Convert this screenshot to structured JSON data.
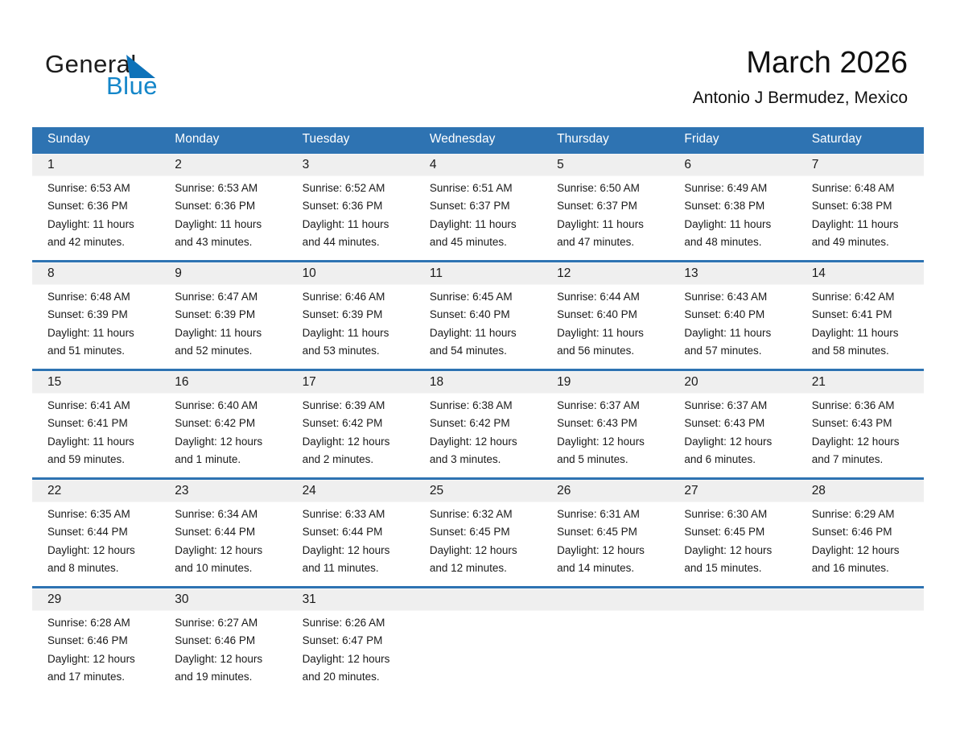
{
  "logo": {
    "general": "General",
    "blue": "Blue"
  },
  "header": {
    "title": "March 2026",
    "subtitle": "Antonio J Bermudez, Mexico"
  },
  "weekdays": [
    "Sunday",
    "Monday",
    "Tuesday",
    "Wednesday",
    "Thursday",
    "Friday",
    "Saturday"
  ],
  "weeks": [
    [
      {
        "day": "1",
        "sunrise": "Sunrise: 6:53 AM",
        "sunset": "Sunset: 6:36 PM",
        "daylight1": "Daylight: 11 hours",
        "daylight2": "and 42 minutes."
      },
      {
        "day": "2",
        "sunrise": "Sunrise: 6:53 AM",
        "sunset": "Sunset: 6:36 PM",
        "daylight1": "Daylight: 11 hours",
        "daylight2": "and 43 minutes."
      },
      {
        "day": "3",
        "sunrise": "Sunrise: 6:52 AM",
        "sunset": "Sunset: 6:36 PM",
        "daylight1": "Daylight: 11 hours",
        "daylight2": "and 44 minutes."
      },
      {
        "day": "4",
        "sunrise": "Sunrise: 6:51 AM",
        "sunset": "Sunset: 6:37 PM",
        "daylight1": "Daylight: 11 hours",
        "daylight2": "and 45 minutes."
      },
      {
        "day": "5",
        "sunrise": "Sunrise: 6:50 AM",
        "sunset": "Sunset: 6:37 PM",
        "daylight1": "Daylight: 11 hours",
        "daylight2": "and 47 minutes."
      },
      {
        "day": "6",
        "sunrise": "Sunrise: 6:49 AM",
        "sunset": "Sunset: 6:38 PM",
        "daylight1": "Daylight: 11 hours",
        "daylight2": "and 48 minutes."
      },
      {
        "day": "7",
        "sunrise": "Sunrise: 6:48 AM",
        "sunset": "Sunset: 6:38 PM",
        "daylight1": "Daylight: 11 hours",
        "daylight2": "and 49 minutes."
      }
    ],
    [
      {
        "day": "8",
        "sunrise": "Sunrise: 6:48 AM",
        "sunset": "Sunset: 6:39 PM",
        "daylight1": "Daylight: 11 hours",
        "daylight2": "and 51 minutes."
      },
      {
        "day": "9",
        "sunrise": "Sunrise: 6:47 AM",
        "sunset": "Sunset: 6:39 PM",
        "daylight1": "Daylight: 11 hours",
        "daylight2": "and 52 minutes."
      },
      {
        "day": "10",
        "sunrise": "Sunrise: 6:46 AM",
        "sunset": "Sunset: 6:39 PM",
        "daylight1": "Daylight: 11 hours",
        "daylight2": "and 53 minutes."
      },
      {
        "day": "11",
        "sunrise": "Sunrise: 6:45 AM",
        "sunset": "Sunset: 6:40 PM",
        "daylight1": "Daylight: 11 hours",
        "daylight2": "and 54 minutes."
      },
      {
        "day": "12",
        "sunrise": "Sunrise: 6:44 AM",
        "sunset": "Sunset: 6:40 PM",
        "daylight1": "Daylight: 11 hours",
        "daylight2": "and 56 minutes."
      },
      {
        "day": "13",
        "sunrise": "Sunrise: 6:43 AM",
        "sunset": "Sunset: 6:40 PM",
        "daylight1": "Daylight: 11 hours",
        "daylight2": "and 57 minutes."
      },
      {
        "day": "14",
        "sunrise": "Sunrise: 6:42 AM",
        "sunset": "Sunset: 6:41 PM",
        "daylight1": "Daylight: 11 hours",
        "daylight2": "and 58 minutes."
      }
    ],
    [
      {
        "day": "15",
        "sunrise": "Sunrise: 6:41 AM",
        "sunset": "Sunset: 6:41 PM",
        "daylight1": "Daylight: 11 hours",
        "daylight2": "and 59 minutes."
      },
      {
        "day": "16",
        "sunrise": "Sunrise: 6:40 AM",
        "sunset": "Sunset: 6:42 PM",
        "daylight1": "Daylight: 12 hours",
        "daylight2": "and 1 minute."
      },
      {
        "day": "17",
        "sunrise": "Sunrise: 6:39 AM",
        "sunset": "Sunset: 6:42 PM",
        "daylight1": "Daylight: 12 hours",
        "daylight2": "and 2 minutes."
      },
      {
        "day": "18",
        "sunrise": "Sunrise: 6:38 AM",
        "sunset": "Sunset: 6:42 PM",
        "daylight1": "Daylight: 12 hours",
        "daylight2": "and 3 minutes."
      },
      {
        "day": "19",
        "sunrise": "Sunrise: 6:37 AM",
        "sunset": "Sunset: 6:43 PM",
        "daylight1": "Daylight: 12 hours",
        "daylight2": "and 5 minutes."
      },
      {
        "day": "20",
        "sunrise": "Sunrise: 6:37 AM",
        "sunset": "Sunset: 6:43 PM",
        "daylight1": "Daylight: 12 hours",
        "daylight2": "and 6 minutes."
      },
      {
        "day": "21",
        "sunrise": "Sunrise: 6:36 AM",
        "sunset": "Sunset: 6:43 PM",
        "daylight1": "Daylight: 12 hours",
        "daylight2": "and 7 minutes."
      }
    ],
    [
      {
        "day": "22",
        "sunrise": "Sunrise: 6:35 AM",
        "sunset": "Sunset: 6:44 PM",
        "daylight1": "Daylight: 12 hours",
        "daylight2": "and 8 minutes."
      },
      {
        "day": "23",
        "sunrise": "Sunrise: 6:34 AM",
        "sunset": "Sunset: 6:44 PM",
        "daylight1": "Daylight: 12 hours",
        "daylight2": "and 10 minutes."
      },
      {
        "day": "24",
        "sunrise": "Sunrise: 6:33 AM",
        "sunset": "Sunset: 6:44 PM",
        "daylight1": "Daylight: 12 hours",
        "daylight2": "and 11 minutes."
      },
      {
        "day": "25",
        "sunrise": "Sunrise: 6:32 AM",
        "sunset": "Sunset: 6:45 PM",
        "daylight1": "Daylight: 12 hours",
        "daylight2": "and 12 minutes."
      },
      {
        "day": "26",
        "sunrise": "Sunrise: 6:31 AM",
        "sunset": "Sunset: 6:45 PM",
        "daylight1": "Daylight: 12 hours",
        "daylight2": "and 14 minutes."
      },
      {
        "day": "27",
        "sunrise": "Sunrise: 6:30 AM",
        "sunset": "Sunset: 6:45 PM",
        "daylight1": "Daylight: 12 hours",
        "daylight2": "and 15 minutes."
      },
      {
        "day": "28",
        "sunrise": "Sunrise: 6:29 AM",
        "sunset": "Sunset: 6:46 PM",
        "daylight1": "Daylight: 12 hours",
        "daylight2": "and 16 minutes."
      }
    ],
    [
      {
        "day": "29",
        "sunrise": "Sunrise: 6:28 AM",
        "sunset": "Sunset: 6:46 PM",
        "daylight1": "Daylight: 12 hours",
        "daylight2": "and 17 minutes."
      },
      {
        "day": "30",
        "sunrise": "Sunrise: 6:27 AM",
        "sunset": "Sunset: 6:46 PM",
        "daylight1": "Daylight: 12 hours",
        "daylight2": "and 19 minutes."
      },
      {
        "day": "31",
        "sunrise": "Sunrise: 6:26 AM",
        "sunset": "Sunset: 6:47 PM",
        "daylight1": "Daylight: 12 hours",
        "daylight2": "and 20 minutes."
      },
      null,
      null,
      null,
      null
    ]
  ],
  "colors": {
    "header_blue": "#2e73b2",
    "band_gray": "#efefef",
    "text": "#1a1a1a",
    "logo_black": "#1c1c1c",
    "logo_blue": "#1486c9",
    "logo_triangle_blue": "#0d72b9"
  }
}
